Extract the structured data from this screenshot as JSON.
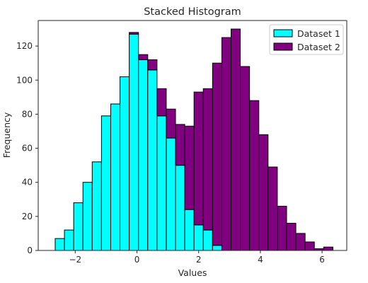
{
  "chart_data": {
    "type": "bar",
    "title": "Stacked Histogram",
    "xlabel": "Values",
    "ylabel": "Frequency",
    "xlim": [
      -3.2,
      6.8
    ],
    "ylim": [
      0,
      135
    ],
    "x_ticks": [
      -2,
      0,
      2,
      4,
      6
    ],
    "y_ticks": [
      0,
      20,
      40,
      60,
      80,
      100,
      120
    ],
    "grid": false,
    "legend_position": "top-right",
    "bin_edges": [
      -2.65,
      -2.35,
      -2.05,
      -1.75,
      -1.45,
      -1.15,
      -0.85,
      -0.55,
      -0.25,
      0.05,
      0.35,
      0.65,
      0.95,
      1.25,
      1.55,
      1.85,
      2.15,
      2.45,
      2.75,
      3.05,
      3.35,
      3.65,
      3.95,
      4.25,
      4.55,
      4.85,
      5.15,
      5.45,
      5.75,
      6.05,
      6.35
    ],
    "series": [
      {
        "name": "Dataset 1",
        "color": "#00ffff",
        "values": [
          7,
          12,
          28,
          40,
          52,
          79,
          86,
          102,
          127,
          112,
          106,
          79,
          66,
          50,
          24,
          15,
          12,
          3,
          0,
          0,
          0,
          0,
          0,
          0,
          0,
          0,
          0,
          0,
          0,
          0
        ]
      },
      {
        "name": "Dataset 2",
        "color": "#800080",
        "values": [
          0,
          0,
          0,
          0,
          0,
          0,
          0,
          0,
          1,
          3,
          6,
          16,
          17,
          24,
          49,
          78,
          83,
          107,
          125,
          130,
          108,
          88,
          68,
          49,
          26,
          16,
          10,
          5,
          1,
          2
        ]
      }
    ]
  }
}
